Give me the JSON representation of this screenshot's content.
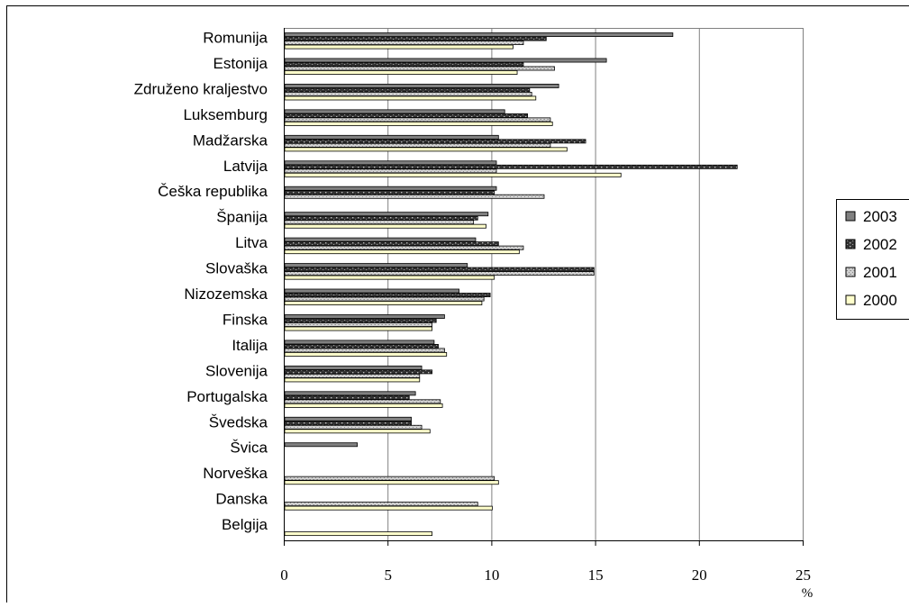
{
  "chart_data": {
    "type": "bar",
    "orientation": "horizontal",
    "categories": [
      "Romunija",
      "Estonija",
      "Združeno kraljestvo",
      "Luksemburg",
      "Madžarska",
      "Latvija",
      "Češka republika",
      "Španija",
      "Litva",
      "Slovaška",
      "Nizozemska",
      "Finska",
      "Italija",
      "Slovenija",
      "Portugalska",
      "Švedska",
      "Švica",
      "Norveška",
      "Danska",
      "Belgija"
    ],
    "series": [
      {
        "name": "2003",
        "color": "#808080",
        "pattern": "solid",
        "values": [
          18.7,
          15.5,
          13.2,
          10.6,
          10.3,
          10.2,
          10.2,
          9.8,
          9.2,
          8.8,
          8.4,
          7.7,
          7.2,
          6.6,
          6.3,
          6.1,
          3.5,
          null,
          null,
          null
        ]
      },
      {
        "name": "2002",
        "color": "#333333",
        "pattern": "dots",
        "values": [
          12.6,
          11.5,
          11.8,
          11.7,
          14.5,
          21.8,
          10.1,
          9.3,
          10.3,
          14.9,
          9.9,
          7.3,
          7.4,
          7.1,
          6.0,
          6.1,
          null,
          null,
          null,
          null
        ]
      },
      {
        "name": "2001",
        "color": "#c8c8c8",
        "pattern": "texture",
        "values": [
          11.5,
          13.0,
          11.9,
          12.8,
          12.8,
          10.2,
          12.5,
          9.1,
          11.5,
          14.9,
          9.6,
          7.1,
          7.7,
          6.5,
          7.5,
          6.6,
          null,
          10.1,
          9.3,
          null
        ]
      },
      {
        "name": "2000",
        "color": "#ffffcc",
        "pattern": "solid",
        "values": [
          11.0,
          11.2,
          12.1,
          12.9,
          13.6,
          16.2,
          null,
          9.7,
          11.3,
          10.1,
          9.5,
          7.1,
          7.8,
          6.5,
          7.6,
          7.0,
          null,
          10.3,
          10.0,
          7.1
        ]
      }
    ],
    "x_ticks": [
      "0",
      "5",
      "10",
      "15",
      "20",
      "25"
    ],
    "xlim": [
      0,
      25
    ],
    "xlabel": "%",
    "grid": "vertical major gridlines",
    "legend_position": "right"
  }
}
